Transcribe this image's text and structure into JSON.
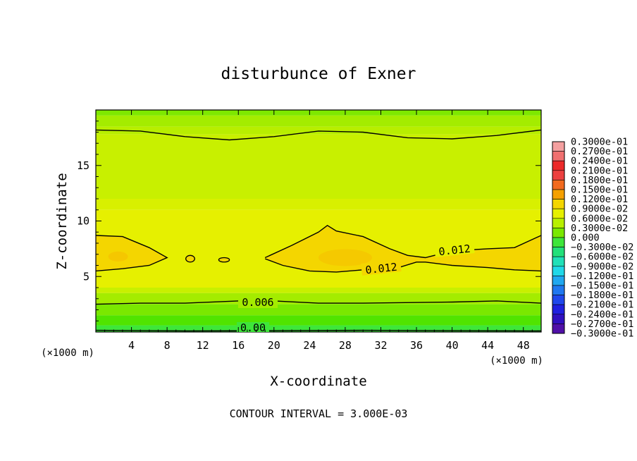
{
  "chart_data": {
    "type": "contour",
    "title": "disturbunce of Exner",
    "xlabel": "X-coordinate",
    "ylabel": "Z-coordinate",
    "x_unit_label": "(×1000 m)",
    "z_unit_label": "(×1000 m)",
    "xlim": [
      0,
      50
    ],
    "ylim": [
      0,
      20
    ],
    "x_ticks": [
      "4",
      "8",
      "12",
      "16",
      "20",
      "24",
      "28",
      "32",
      "36",
      "40",
      "44",
      "48"
    ],
    "y_ticks": [
      "5",
      "10",
      "15"
    ],
    "footer": "CONTOUR INTERVAL = 3.000E-03",
    "contour_labels": [
      "0.012",
      "0.012",
      "0.006",
      "0.00"
    ],
    "contour_lines": [
      {
        "level": 0.0,
        "points": [
          [
            0,
            0.15
          ],
          [
            10,
            0.1
          ],
          [
            20,
            0.12
          ],
          [
            30,
            0.15
          ],
          [
            40,
            0.12
          ],
          [
            50,
            0.1
          ]
        ]
      },
      {
        "level": 0.006,
        "points": [
          [
            0,
            2.5
          ],
          [
            5,
            2.6
          ],
          [
            10,
            2.6
          ],
          [
            16,
            2.8
          ],
          [
            20,
            2.8
          ],
          [
            25,
            2.6
          ],
          [
            30,
            2.6
          ],
          [
            40,
            2.7
          ],
          [
            45,
            2.8
          ],
          [
            50,
            2.6
          ]
        ]
      },
      {
        "level": 0.012,
        "points": [
          [
            0,
            8.7
          ],
          [
            3,
            8.6
          ],
          [
            6,
            7.6
          ],
          [
            8,
            6.7
          ],
          [
            6,
            6.0
          ],
          [
            3,
            5.7
          ],
          [
            0,
            5.5
          ]
        ]
      },
      {
        "level": 0.012,
        "points": [
          [
            19,
            6.7
          ],
          [
            22,
            7.8
          ],
          [
            25,
            9.0
          ],
          [
            26,
            9.6
          ],
          [
            27,
            9.1
          ],
          [
            30,
            8.6
          ],
          [
            33,
            7.5
          ],
          [
            35,
            6.9
          ],
          [
            37,
            6.7
          ],
          [
            40,
            7.3
          ],
          [
            44,
            7.5
          ],
          [
            47,
            7.6
          ],
          [
            50,
            8.7
          ]
        ]
      },
      {
        "level": 0.012,
        "points": [
          [
            19,
            6.6
          ],
          [
            21,
            6.0
          ],
          [
            24,
            5.5
          ],
          [
            27,
            5.4
          ],
          [
            30,
            5.6
          ],
          [
            34,
            5.8
          ],
          [
            36,
            6.3
          ],
          [
            37,
            6.3
          ],
          [
            40,
            6.0
          ],
          [
            44,
            5.8
          ],
          [
            47,
            5.6
          ],
          [
            50,
            5.5
          ]
        ]
      },
      {
        "level": 0.012,
        "points": [
          [
            0,
            18.2
          ],
          [
            5,
            18.1
          ],
          [
            10,
            17.6
          ],
          [
            15,
            17.3
          ],
          [
            20,
            17.6
          ],
          [
            25,
            18.1
          ],
          [
            30,
            18.0
          ],
          [
            35,
            17.5
          ],
          [
            40,
            17.4
          ],
          [
            45,
            17.7
          ],
          [
            50,
            18.2
          ]
        ]
      }
    ],
    "contour_loops": [
      {
        "level": 0.012,
        "cx": 10.6,
        "cz": 6.6,
        "rx": 0.5,
        "rz": 0.3
      },
      {
        "level": 0.012,
        "cx": 14.4,
        "cz": 6.5,
        "rx": 0.6,
        "rz": 0.2
      }
    ],
    "colorbar": {
      "labels": [
        "0.3000e-01",
        "0.2700e-01",
        "0.2400e-01",
        "0.2100e-01",
        "0.1800e-01",
        "0.1500e-01",
        "0.1200e-01",
        "0.9000e-02",
        "0.6000e-02",
        "0.3000e-02",
        "0.000",
        "−0.3000e-02",
        "−0.6000e-02",
        "−0.9000e-02",
        "−0.1200e-01",
        "−0.1500e-01",
        "−0.1800e-01",
        "−0.2100e-01",
        "−0.2400e-01",
        "−0.2700e-01",
        "−0.3000e-01"
      ],
      "colors": [
        "#f4a0a0",
        "#f07070",
        "#ec2a2a",
        "#ec4040",
        "#f26a1e",
        "#f5a000",
        "#f4d600",
        "#e6f000",
        "#b8f000",
        "#7ae800",
        "#3ee63a",
        "#22e07a",
        "#20e0b8",
        "#20d8e8",
        "#20a8f0",
        "#2078f0",
        "#2048ec",
        "#2020e0",
        "#3010c0",
        "#5010a8"
      ]
    },
    "field_bands": [
      {
        "from": 19.5,
        "to": 20.0,
        "color": "#7ee800"
      },
      {
        "from": 18.5,
        "to": 19.5,
        "color": "#a4ec00"
      },
      {
        "from": 17.8,
        "to": 18.5,
        "color": "#b8ee00"
      },
      {
        "from": 12.0,
        "to": 17.8,
        "color": "#c8f000"
      },
      {
        "from": 11.0,
        "to": 12.0,
        "color": "#d8f000"
      },
      {
        "from": 4.0,
        "to": 11.0,
        "color": "#e6f000"
      },
      {
        "from": 3.5,
        "to": 4.0,
        "color": "#c8f000"
      },
      {
        "from": 2.5,
        "to": 3.5,
        "color": "#a4ec00"
      },
      {
        "from": 1.5,
        "to": 2.5,
        "color": "#7ae800"
      },
      {
        "from": 0.6,
        "to": 1.5,
        "color": "#50e400"
      },
      {
        "from": 0.0,
        "to": 0.6,
        "color": "#3ee63a"
      }
    ],
    "field_fill_012": "#f4d600",
    "field_core": "#f5c000"
  }
}
